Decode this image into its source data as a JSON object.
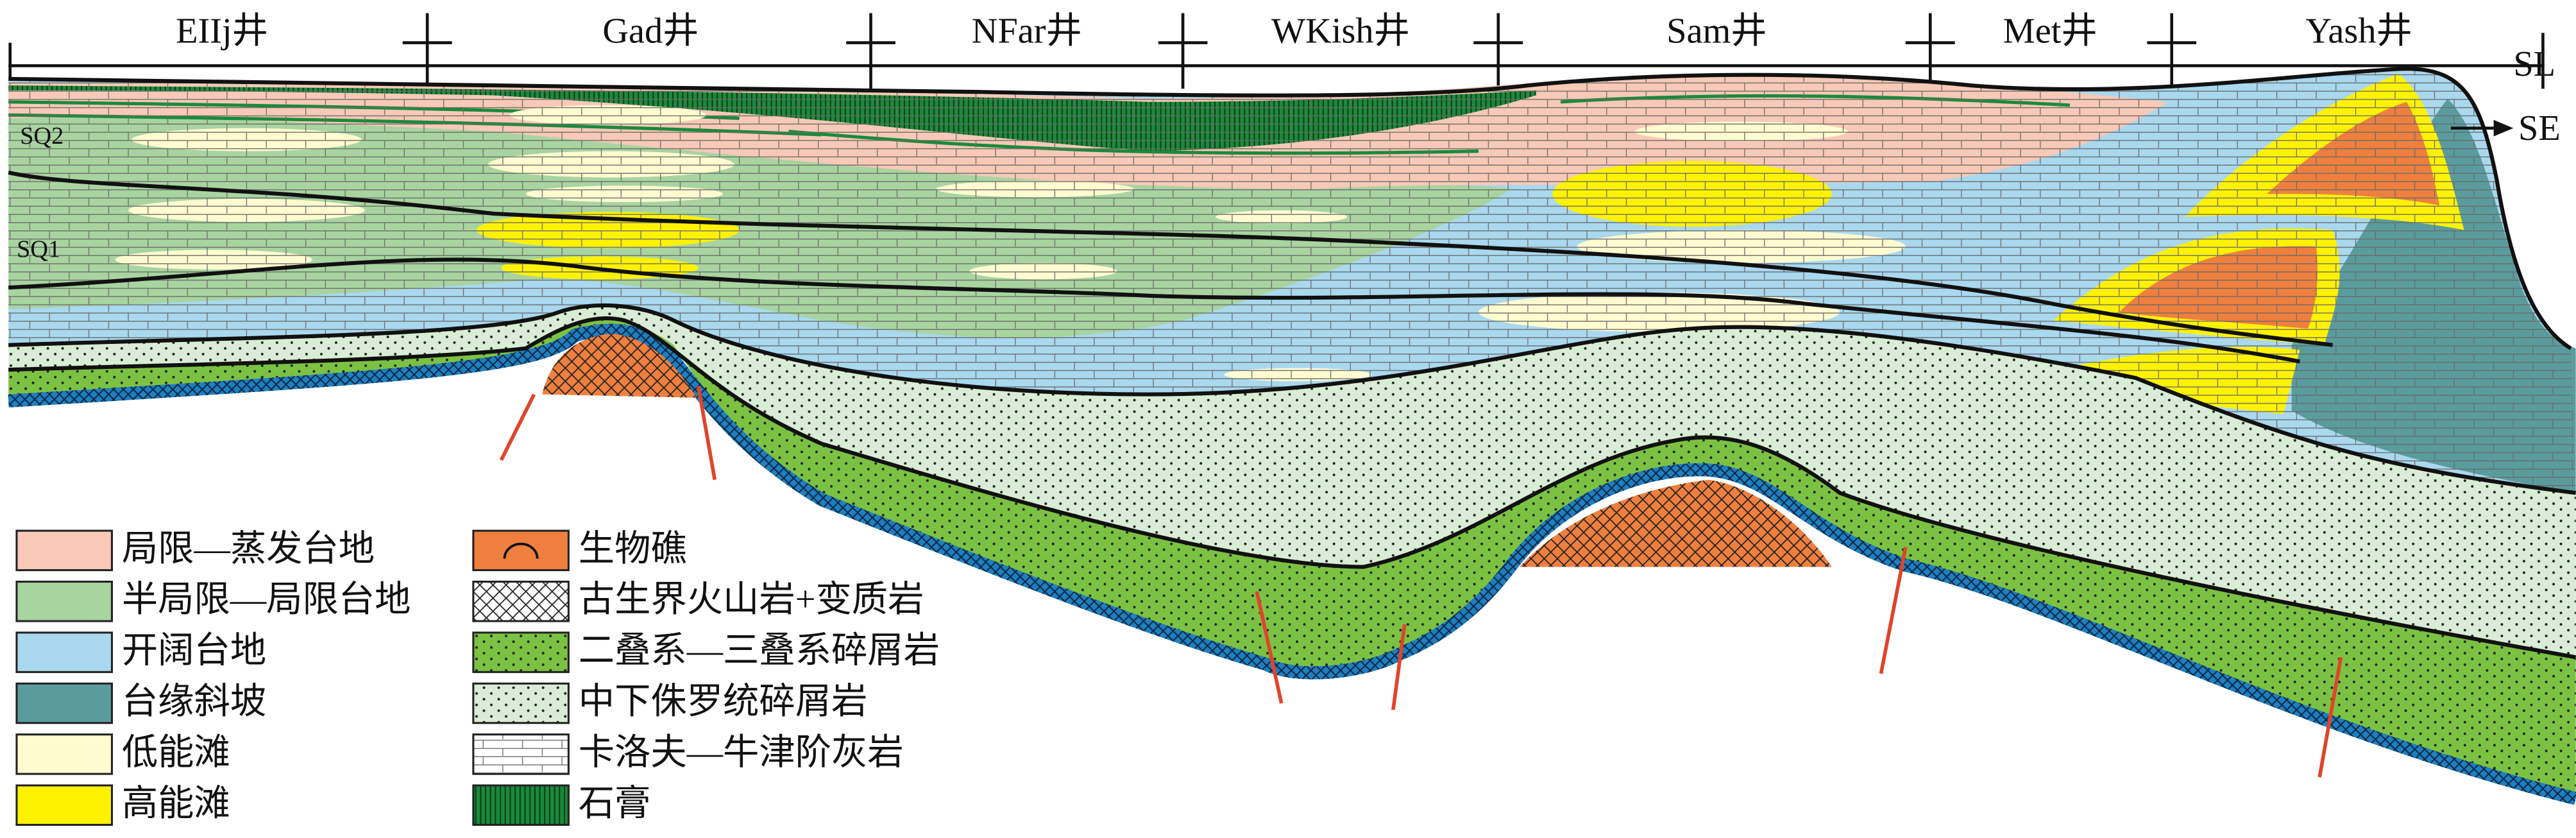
{
  "wells": [
    "EIIj井",
    "Gad井",
    "NFar井",
    "WKish井",
    "Sam井",
    "Met井",
    "Yash井"
  ],
  "sea_level": "SL",
  "direction": "SE",
  "sequences": [
    "SQ2",
    "SQ1"
  ],
  "legend": [
    "局限—蒸发台地",
    "半局限—局限台地",
    "开阔台地",
    "台缘斜坡",
    "低能滩",
    "高能滩",
    "生物礁",
    "古生界火山岩+变质岩",
    "二叠系—三叠系碎屑岩",
    "中下侏罗统碎屑岩",
    "卡洛夫—牛津阶灰岩",
    "石膏"
  ]
}
